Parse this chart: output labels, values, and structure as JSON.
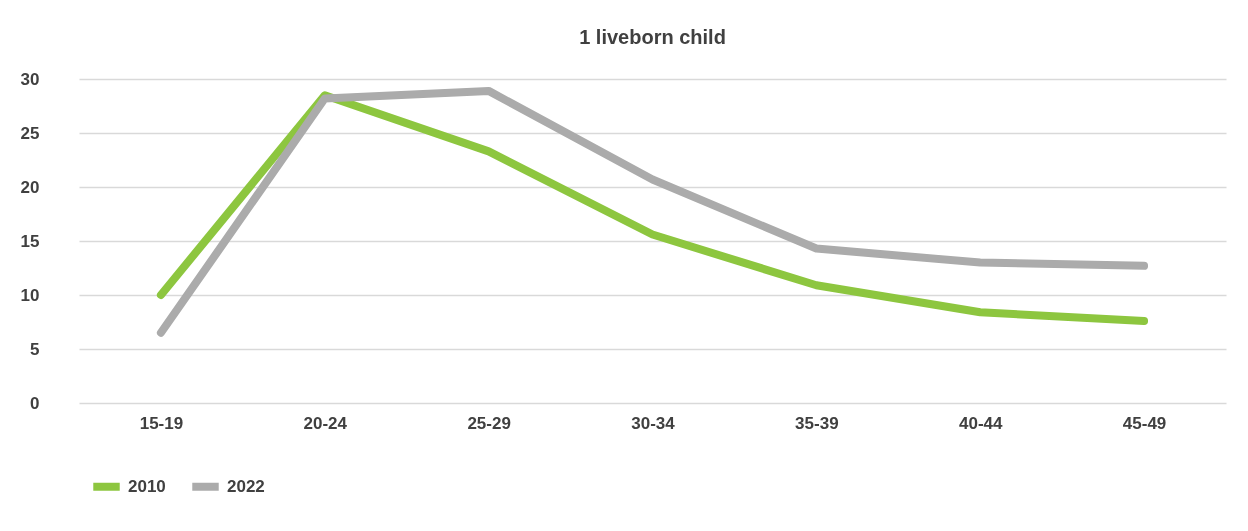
{
  "chart_data": {
    "type": "line",
    "title": "1 liveborn child",
    "categories": [
      "15-19",
      "20-24",
      "25-29",
      "30-34",
      "35-39",
      "40-44",
      "45-49"
    ],
    "series": [
      {
        "name": "2010",
        "color": "#8dc63f",
        "values": [
          10.0,
          28.5,
          23.3,
          15.6,
          10.9,
          8.4,
          7.6
        ]
      },
      {
        "name": "2022",
        "color": "#ababab",
        "values": [
          6.5,
          28.2,
          28.9,
          20.7,
          14.3,
          13.0,
          12.7
        ]
      }
    ],
    "ylim": [
      0,
      30
    ],
    "yticks": [
      0,
      5,
      10,
      15,
      20,
      25,
      30
    ],
    "grid": "y",
    "legend": "bottom",
    "marker": "none",
    "line_style": "solid"
  }
}
